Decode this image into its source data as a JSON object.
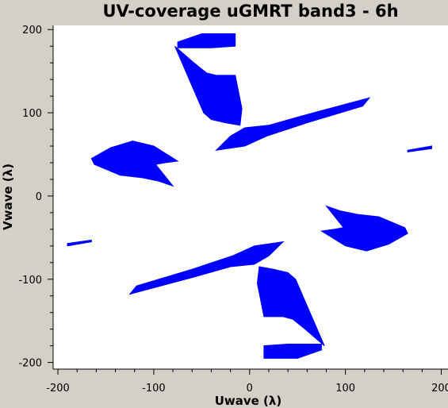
{
  "colors": {
    "background": "#d4d0c8",
    "plot_area": "#ffffff",
    "data": "#0000ff",
    "axes": "#000000"
  },
  "chart_data": {
    "type": "scatter",
    "title": "UV-coverage uGMRT band3 - 6h",
    "xlabel": "Uwave (λ)",
    "ylabel": "Vwave (λ)",
    "xlim": [
      -205,
      207
    ],
    "ylim": [
      -208,
      205
    ],
    "xticks": [
      -200,
      -100,
      0,
      100,
      200
    ],
    "yticks": [
      200,
      100,
      0,
      -100,
      -200
    ],
    "xtick_labels": [
      "-200",
      "-100",
      "0",
      "100",
      "200"
    ],
    "ytick_labels": [
      "200",
      "100",
      "0",
      "-100",
      "-200"
    ],
    "grid": false,
    "series": [
      {
        "color": "#0000ff",
        "regions": [
          {
            "region": "upper-left arm, upper block",
            "points": [
              [
                -75,
                185
              ],
              [
                -50,
                195
              ],
              [
                -15,
                195
              ],
              [
                -15,
                180
              ],
              [
                -40,
                178
              ],
              [
                -75,
                178
              ]
            ]
          },
          {
            "region": "upper-left arm",
            "points": [
              [
                -78,
                180
              ],
              [
                -58,
                160
              ],
              [
                -45,
                148
              ],
              [
                -35,
                145
              ],
              [
                -15,
                145
              ],
              [
                -8,
                105
              ],
              [
                -10,
                85
              ],
              [
                -25,
                88
              ],
              [
                -40,
                92
              ],
              [
                -48,
                100
              ]
            ]
          },
          {
            "region": "upper-right arm",
            "points": [
              [
                -35,
                55
              ],
              [
                -20,
                72
              ],
              [
                -5,
                82
              ],
              [
                20,
                85
              ],
              [
                60,
                98
              ],
              [
                125,
                118
              ],
              [
                118,
                108
              ],
              [
                60,
                88
              ],
              [
                18,
                72
              ],
              [
                -5,
                60
              ]
            ]
          },
          {
            "region": "far upper-right",
            "points": [
              [
                165,
                55
              ],
              [
                190,
                60
              ],
              [
                190,
                57
              ],
              [
                165,
                53
              ]
            ]
          },
          {
            "region": "left crescent",
            "points": [
              [
                -165,
                45
              ],
              [
                -145,
                58
              ],
              [
                -122,
                66
              ],
              [
                -100,
                60
              ],
              [
                -75,
                42
              ],
              [
                -88,
                40
              ],
              [
                -98,
                38
              ],
              [
                -80,
                12
              ],
              [
                -95,
                18
              ],
              [
                -112,
                22
              ],
              [
                -135,
                25
              ],
              [
                -162,
                38
              ]
            ]
          },
          {
            "region": "right crescent",
            "points": [
              [
                165,
                -45
              ],
              [
                145,
                -58
              ],
              [
                122,
                -66
              ],
              [
                100,
                -60
              ],
              [
                75,
                -42
              ],
              [
                88,
                -40
              ],
              [
                98,
                -38
              ],
              [
                80,
                -12
              ],
              [
                95,
                -18
              ],
              [
                112,
                -22
              ],
              [
                135,
                -25
              ],
              [
                162,
                -38
              ]
            ]
          },
          {
            "region": "lower-left arm",
            "points": [
              [
                35,
                -55
              ],
              [
                20,
                -72
              ],
              [
                5,
                -82
              ],
              [
                -20,
                -85
              ],
              [
                -60,
                -98
              ],
              [
                -125,
                -118
              ],
              [
                -118,
                -108
              ],
              [
                -60,
                -88
              ],
              [
                -18,
                -72
              ],
              [
                5,
                -60
              ]
            ]
          },
          {
            "region": "far lower-left",
            "points": [
              [
                -165,
                -55
              ],
              [
                -190,
                -60
              ],
              [
                -190,
                -57
              ],
              [
                -165,
                -53
              ]
            ]
          },
          {
            "region": "lower-right arm",
            "points": [
              [
                78,
                -180
              ],
              [
                58,
                -160
              ],
              [
                45,
                -148
              ],
              [
                35,
                -145
              ],
              [
                15,
                -145
              ],
              [
                8,
                -105
              ],
              [
                10,
                -85
              ],
              [
                25,
                -88
              ],
              [
                40,
                -92
              ],
              [
                48,
                -100
              ]
            ]
          },
          {
            "region": "lower-right arm, lower block",
            "points": [
              [
                75,
                -185
              ],
              [
                50,
                -195
              ],
              [
                15,
                -195
              ],
              [
                15,
                -180
              ],
              [
                40,
                -178
              ],
              [
                75,
                -178
              ]
            ]
          }
        ]
      }
    ]
  }
}
